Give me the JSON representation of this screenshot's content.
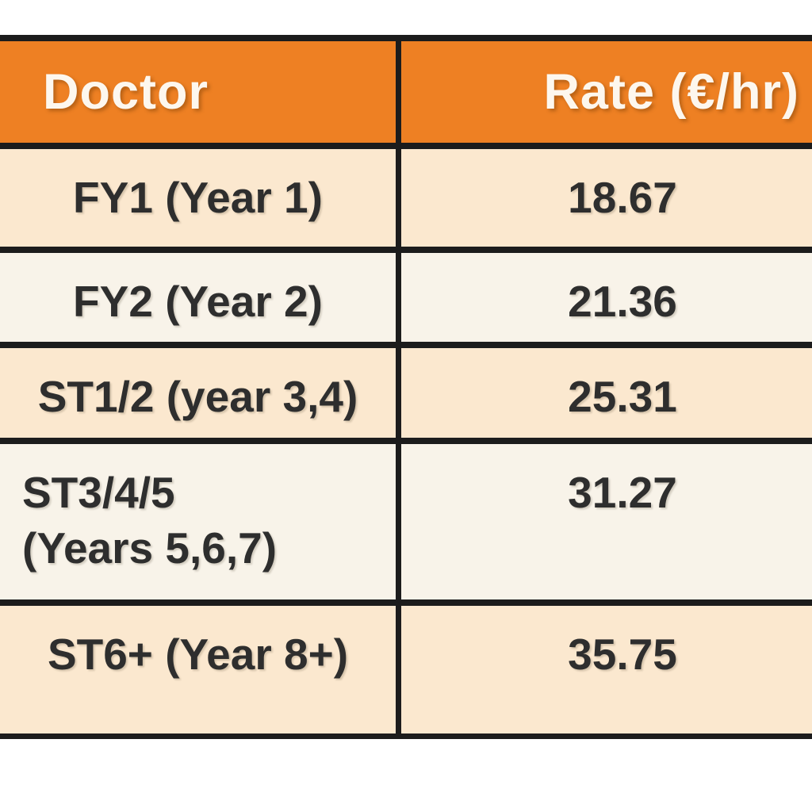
{
  "chart_data": {
    "type": "table",
    "columns": [
      "Doctor",
      "Rate (€/hr)"
    ],
    "rows": [
      [
        "FY1 (Year 1)",
        18.67
      ],
      [
        "FY2 (Year 2)",
        21.36
      ],
      [
        "ST1/2 (year 3,4)",
        25.31
      ],
      [
        "ST3/4/5 (Years 5,6,7)",
        31.27
      ],
      [
        "ST6+ (Year 8+)",
        35.75
      ]
    ]
  },
  "table": {
    "header": {
      "doctor": "Doctor",
      "rate": "Rate (€/hr)"
    },
    "rows": [
      {
        "doctor": "FY1 (Year 1)",
        "rate": "18.67"
      },
      {
        "doctor": "FY2 (Year 2)",
        "rate": "21.36"
      },
      {
        "doctor": "ST1/2 (year 3,4)",
        "rate": "25.31"
      },
      {
        "doctor": "ST3/4/5\n(Years 5,6,7)",
        "rate": "31.27"
      },
      {
        "doctor": "ST6+ (Year 8+)",
        "rate": "35.75"
      }
    ]
  },
  "colors": {
    "header_bg": "#ee8023",
    "row_cream": "#fbe8cf",
    "row_offwhite": "#f8f3e9",
    "grid_border": "#1c1c1c",
    "header_text": "#fdf7ee",
    "body_text": "#2e2e2e",
    "page_bg": "#ffffff"
  }
}
